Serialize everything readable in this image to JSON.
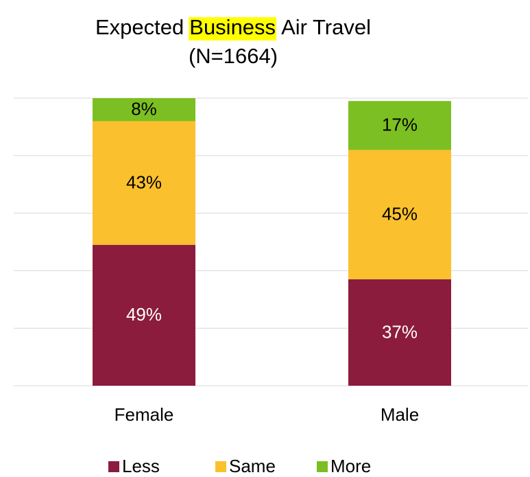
{
  "chart_data": {
    "type": "stacked_bar",
    "title": [
      "Expected",
      "Business",
      "Air Travel"
    ],
    "title_highlight_index": 1,
    "title_highlight_color": "#ffff00",
    "subtitle": "(N=1664)",
    "categories": [
      "Female",
      "Male"
    ],
    "series": [
      {
        "name": "Less",
        "color": "#8b1c3e",
        "label_color": "#ffffff",
        "values": [
          49,
          37
        ],
        "value_labels": [
          "49%",
          "37%"
        ]
      },
      {
        "name": "Same",
        "color": "#fbc02d",
        "label_color": "#000000",
        "values": [
          43,
          45
        ],
        "value_labels": [
          "43%",
          "45%"
        ]
      },
      {
        "name": "More",
        "color": "#7cbf22",
        "label_color": "#000000",
        "values": [
          8,
          17
        ],
        "value_labels": [
          "8%",
          "17%"
        ]
      }
    ],
    "ylim": [
      0,
      100
    ],
    "yticks": [
      0,
      20,
      40,
      60,
      80,
      100
    ],
    "grid": true,
    "legend": "bottom"
  }
}
